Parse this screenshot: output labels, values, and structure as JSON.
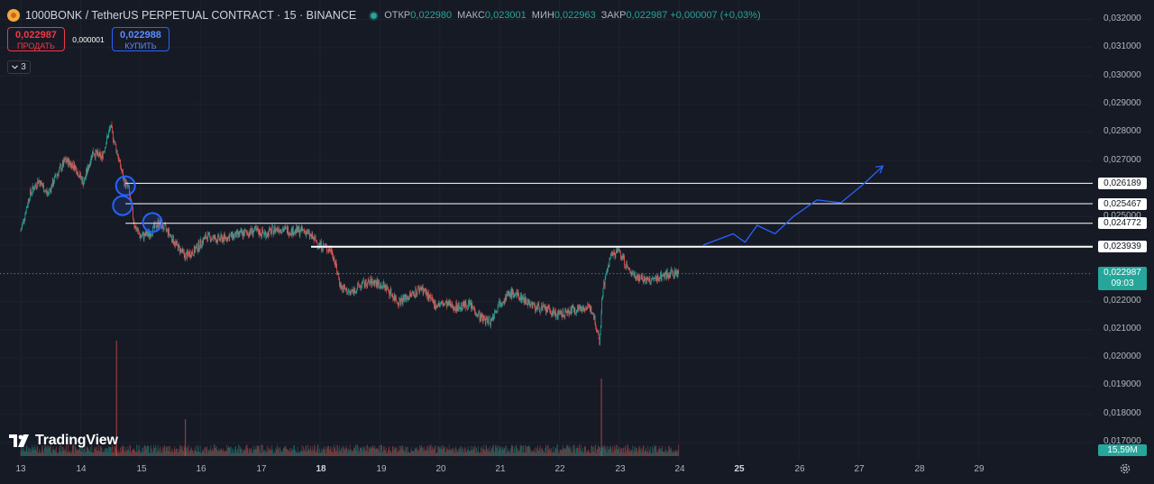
{
  "header": {
    "symbol_title": "1000BONK / TetherUS PERPETUAL CONTRACT · 15 · BINANCE",
    "ohlc": [
      {
        "label": "ОТКР",
        "value": "0,022980"
      },
      {
        "label": "МАКС",
        "value": "0,023001"
      },
      {
        "label": "МИН",
        "value": "0,022963"
      },
      {
        "label": "ЗАКР",
        "value": "0,022987 +0,000007 (+0,03%)"
      }
    ]
  },
  "trade": {
    "sell_price": "0,022987",
    "sell_label": "ПРОДАТЬ",
    "spread": "0,000001",
    "buy_price": "0,022988",
    "buy_label": "КУПИТЬ"
  },
  "indicators_toggle": {
    "count": "3"
  },
  "price_axis": {
    "ticks": [
      "0,032000",
      "0,031000",
      "0,030000",
      "0,029000",
      "0,028000",
      "0,027000",
      "0,025000",
      "0,022000",
      "0,021000",
      "0,020000",
      "0,019000",
      "0,018000",
      "0,017000"
    ],
    "current_price": "0,022987",
    "countdown": "09:03",
    "volume_label": "15,59M",
    "levels": [
      "0,026189",
      "0,025467",
      "0,024772",
      "0,023939"
    ]
  },
  "time_axis": {
    "labels": [
      {
        "text": "13",
        "bold": false
      },
      {
        "text": "14",
        "bold": false
      },
      {
        "text": "15",
        "bold": false
      },
      {
        "text": "16",
        "bold": false
      },
      {
        "text": "17",
        "bold": false
      },
      {
        "text": "18",
        "bold": true
      },
      {
        "text": "19",
        "bold": false
      },
      {
        "text": "20",
        "bold": false
      },
      {
        "text": "21",
        "bold": false
      },
      {
        "text": "22",
        "bold": false
      },
      {
        "text": "23",
        "bold": false
      },
      {
        "text": "24",
        "bold": false
      },
      {
        "text": "25",
        "bold": true
      },
      {
        "text": "26",
        "bold": false
      },
      {
        "text": "27",
        "bold": false
      },
      {
        "text": "28",
        "bold": false
      },
      {
        "text": "29",
        "bold": false
      }
    ]
  },
  "logo": {
    "text": "TradingView"
  },
  "colors": {
    "background": "#161a25",
    "up": "#26a69a",
    "down": "#ef5350",
    "level_line": "#ffffff",
    "forecast_line": "#2962ff"
  },
  "chart_data": {
    "type": "candlestick",
    "ylim": [
      0.0168,
      0.0322
    ],
    "grid": true,
    "close_path": [
      [
        13.0,
        0.0245
      ],
      [
        13.15,
        0.0258
      ],
      [
        13.3,
        0.0263
      ],
      [
        13.45,
        0.0258
      ],
      [
        13.6,
        0.0265
      ],
      [
        13.75,
        0.027
      ],
      [
        13.9,
        0.0268
      ],
      [
        14.05,
        0.0262
      ],
      [
        14.2,
        0.0273
      ],
      [
        14.35,
        0.0271
      ],
      [
        14.5,
        0.0282
      ],
      [
        14.62,
        0.0272
      ],
      [
        14.72,
        0.0263
      ],
      [
        14.8,
        0.026
      ],
      [
        14.9,
        0.0247
      ],
      [
        15.0,
        0.0243
      ],
      [
        15.15,
        0.0244
      ],
      [
        15.3,
        0.0248
      ],
      [
        15.45,
        0.0245
      ],
      [
        15.6,
        0.024
      ],
      [
        15.75,
        0.0236
      ],
      [
        15.9,
        0.0238
      ],
      [
        16.1,
        0.0243
      ],
      [
        16.3,
        0.0242
      ],
      [
        16.5,
        0.0243
      ],
      [
        16.7,
        0.0244
      ],
      [
        16.9,
        0.0245
      ],
      [
        17.1,
        0.0244
      ],
      [
        17.3,
        0.0246
      ],
      [
        17.5,
        0.0245
      ],
      [
        17.75,
        0.0245
      ],
      [
        18.0,
        0.024
      ],
      [
        18.2,
        0.0238
      ],
      [
        18.35,
        0.0225
      ],
      [
        18.5,
        0.0223
      ],
      [
        18.7,
        0.0226
      ],
      [
        18.9,
        0.0227
      ],
      [
        19.1,
        0.0225
      ],
      [
        19.3,
        0.022
      ],
      [
        19.5,
        0.0222
      ],
      [
        19.7,
        0.0225
      ],
      [
        19.9,
        0.0219
      ],
      [
        20.1,
        0.0219
      ],
      [
        20.3,
        0.0218
      ],
      [
        20.5,
        0.0219
      ],
      [
        20.7,
        0.0214
      ],
      [
        20.85,
        0.0213
      ],
      [
        21.0,
        0.022
      ],
      [
        21.2,
        0.0223
      ],
      [
        21.4,
        0.0221
      ],
      [
        21.6,
        0.0218
      ],
      [
        21.8,
        0.0217
      ],
      [
        22.0,
        0.0215
      ],
      [
        22.2,
        0.0217
      ],
      [
        22.4,
        0.0218
      ],
      [
        22.55,
        0.0217
      ],
      [
        22.67,
        0.0206
      ],
      [
        22.72,
        0.0224
      ],
      [
        22.85,
        0.0236
      ],
      [
        23.0,
        0.0238
      ],
      [
        23.15,
        0.0231
      ],
      [
        23.3,
        0.0229
      ],
      [
        23.5,
        0.0227
      ],
      [
        23.7,
        0.0229
      ],
      [
        23.85,
        0.023
      ],
      [
        24.0,
        0.023
      ]
    ],
    "volume_spikes": [
      {
        "x": 14.6,
        "v": 15.6
      },
      {
        "x": 15.75,
        "v": 5.0
      },
      {
        "x": 22.7,
        "v": 10.5
      }
    ],
    "levels": [
      0.026189,
      0.025467,
      0.024772,
      0.023939
    ],
    "circles": [
      {
        "x": 14.75,
        "y": 0.0261
      },
      {
        "x": 14.7,
        "y": 0.0254
      },
      {
        "x": 15.2,
        "y": 0.0248
      }
    ],
    "forecast": [
      [
        24.4,
        0.024
      ],
      [
        24.9,
        0.0244
      ],
      [
        25.1,
        0.0241
      ],
      [
        25.3,
        0.0247
      ],
      [
        25.6,
        0.0244
      ],
      [
        25.9,
        0.025
      ],
      [
        26.3,
        0.0256
      ],
      [
        26.7,
        0.0255
      ],
      [
        27.1,
        0.0262
      ],
      [
        27.4,
        0.0268
      ]
    ]
  }
}
